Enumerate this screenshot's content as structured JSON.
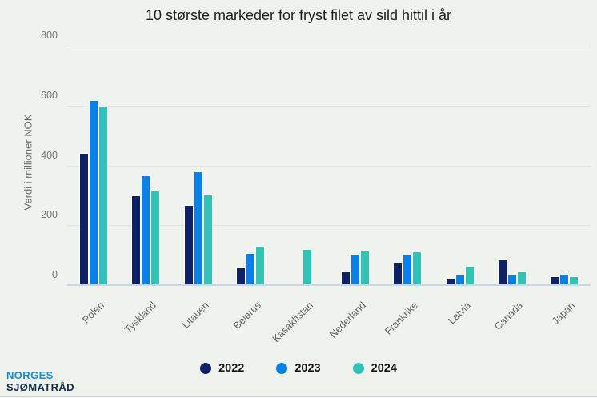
{
  "chart_data": {
    "type": "bar",
    "title": "10 største markeder for fryst filet av sild hittil i år",
    "xlabel": "",
    "ylabel": "Verdi i millioner NOK",
    "ylim": [
      0,
      800
    ],
    "yticks": [
      0,
      200,
      400,
      600,
      800
    ],
    "grid": true,
    "legend_position": "bottom",
    "categories": [
      "Polen",
      "Tyskland",
      "Litauen",
      "Belarus",
      "Kasakhstan",
      "Nederland",
      "Frankrike",
      "Latvia",
      "Canada",
      "Japan"
    ],
    "series": [
      {
        "name": "2022",
        "color": "#0e2166",
        "values": [
          445,
          303,
          271,
          62,
          2,
          47,
          78,
          24,
          87,
          31
        ]
      },
      {
        "name": "2023",
        "color": "#0880e8",
        "values": [
          620,
          368,
          382,
          110,
          0,
          107,
          104,
          38,
          38,
          39
        ]
      },
      {
        "name": "2024",
        "color": "#30c4b4",
        "values": [
          601,
          318,
          305,
          133,
          123,
          119,
          115,
          66,
          47,
          33
        ]
      }
    ]
  },
  "footer": {
    "logo_line1": "NORGES",
    "logo_line2": "SJØMATRÅD"
  },
  "colors": {
    "background": "#f0f2ee",
    "gridline": "#e3e5e1",
    "baseline": "#c9d4ee",
    "logo_blue": "#168cd8",
    "logo_navy": "#0f2a4a"
  }
}
